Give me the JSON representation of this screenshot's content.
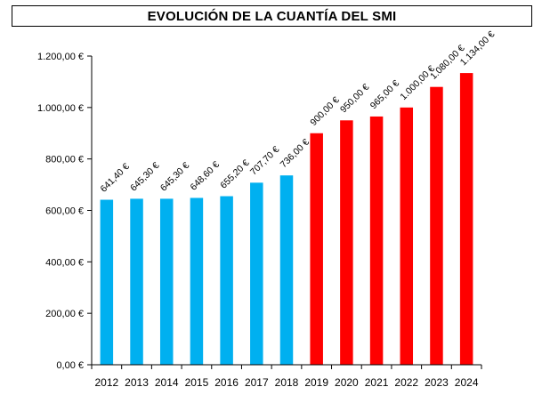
{
  "chart_data": {
    "type": "bar",
    "title": "EVOLUCIÓN DE LA CUANTÍA DEL SMI",
    "xlabel": "",
    "ylabel": "",
    "ylim": [
      0,
      1200
    ],
    "ytick_values": [
      0,
      200,
      400,
      600,
      800,
      1000,
      1200
    ],
    "ytick_labels": [
      "0,00 €",
      "200,00 €",
      "400,00 €",
      "600,00 €",
      "800,00 €",
      "1.000,00 €",
      "1.200,00 €"
    ],
    "categories": [
      "2012",
      "2013",
      "2014",
      "2015",
      "2016",
      "2017",
      "2018",
      "2019",
      "2020",
      "2021",
      "2022",
      "2023",
      "2024"
    ],
    "values": [
      641.4,
      645.3,
      645.3,
      648.6,
      655.2,
      707.7,
      736.0,
      900.0,
      950.0,
      965.0,
      1000.0,
      1080.0,
      1134.0
    ],
    "value_labels": [
      "641,40 €",
      "645,30 €",
      "645,30 €",
      "648,60 €",
      "655,20 €",
      "707,70 €",
      "736,00 €",
      "900,00 €",
      "950,00 €",
      "965,00 €",
      "1.000,00 €",
      "1.080,00 €",
      "1.134,00 €"
    ],
    "bar_colors": [
      "#00b0f0",
      "#00b0f0",
      "#00b0f0",
      "#00b0f0",
      "#00b0f0",
      "#00b0f0",
      "#00b0f0",
      "#ff0000",
      "#ff0000",
      "#ff0000",
      "#ff0000",
      "#ff0000",
      "#ff0000"
    ],
    "grid": false,
    "legend": "none"
  }
}
